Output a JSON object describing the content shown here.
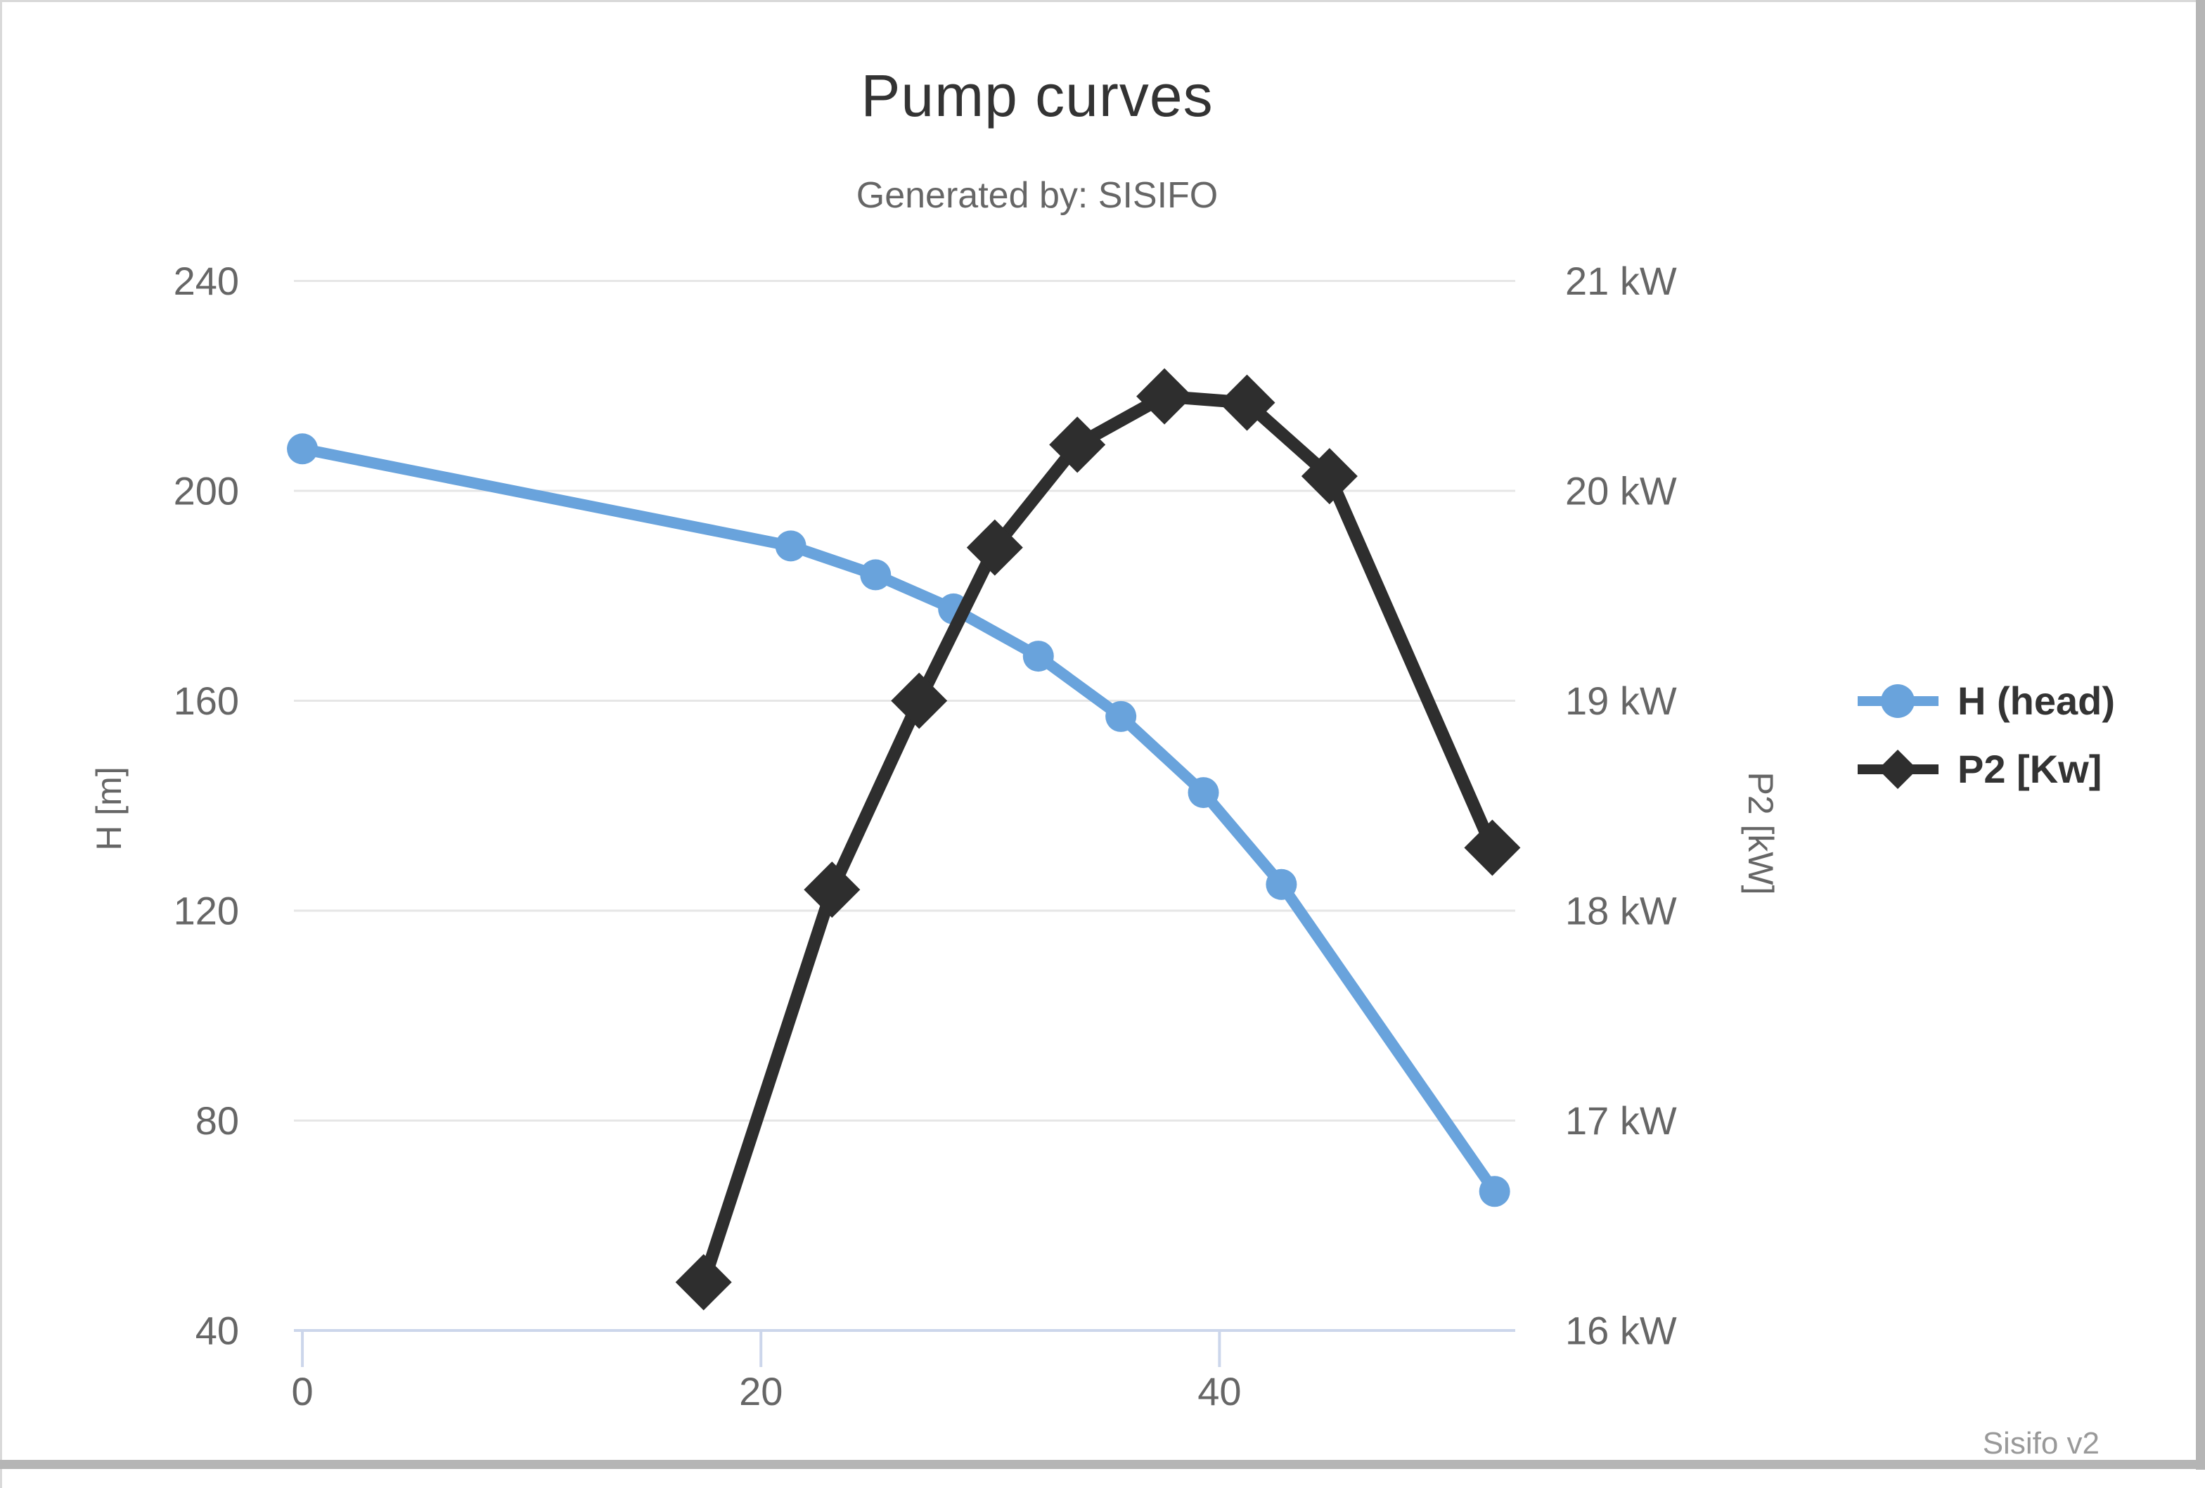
{
  "window": {
    "footer_note": "Sisifo v2"
  },
  "style": {
    "grid_color": "#e6e6e6",
    "axis_line_color": "#ccd6eb",
    "tick_label_color": "#666666",
    "title_color": "#333333",
    "subtitle_color": "#666666",
    "legend_text_color": "#333333",
    "footer_color": "#999999",
    "background": "#ffffff"
  },
  "chart_data": {
    "type": "line",
    "title": "Pump curves",
    "subtitle": "Generated by: SISIFO",
    "legend_position": "right",
    "grid": "horizontal-only",
    "x_axis": {
      "range": [
        -0.37,
        52.9
      ],
      "ticks": [
        0,
        20,
        40
      ]
    },
    "y_axis_left": {
      "title": "H [m]",
      "range": [
        40,
        240
      ],
      "ticks": [
        40,
        80,
        120,
        160,
        200,
        240
      ]
    },
    "y_axis_right": {
      "title": "P2 [kW]",
      "range": [
        16,
        21
      ],
      "ticks": [
        16,
        17,
        18,
        19,
        20,
        21
      ],
      "tick_suffix": " kW"
    },
    "series": [
      {
        "name": "H (head)",
        "axis": "left",
        "color": "#69a3dc",
        "marker": "circle",
        "x": [
          0,
          21.3,
          25.0,
          28.4,
          32.1,
          35.7,
          39.3,
          42.7,
          52.0
        ],
        "y": [
          208,
          189.5,
          184,
          177.5,
          168.5,
          157,
          142.5,
          125,
          66.5
        ]
      },
      {
        "name": "P2 [Kw]",
        "axis": "right",
        "color": "#2e2e2e",
        "marker": "diamond",
        "x": [
          17.5,
          23.1,
          26.9,
          30.2,
          33.8,
          37.6,
          41.2,
          44.8,
          51.9
        ],
        "y": [
          16.23,
          18.1,
          19.0,
          19.73,
          20.22,
          20.45,
          20.42,
          20.07,
          18.3
        ]
      }
    ]
  }
}
